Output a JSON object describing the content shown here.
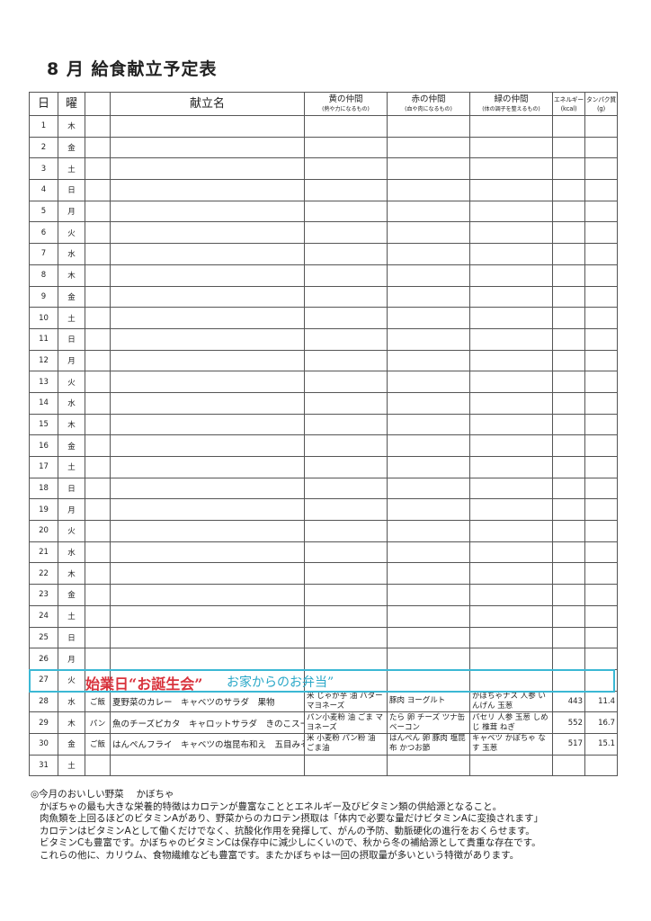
{
  "title": "8 月 給食献立予定表",
  "headers": {
    "day": "日",
    "weekday": "曜",
    "menu": "献立名",
    "yellow": "黄の仲間",
    "yellow_sub": "(熱や力になるもの)",
    "red": "赤の仲間",
    "red_sub": "(血や肉になるもの)",
    "green": "緑の仲間",
    "green_sub": "(体の調子を整えるもの)",
    "energy": "エネルギー",
    "energy_unit": "(kcal)",
    "protein": "タンパク質",
    "protein_unit": "(g)"
  },
  "rows": [
    {
      "day": "1",
      "wd": "木"
    },
    {
      "day": "2",
      "wd": "金"
    },
    {
      "day": "3",
      "wd": "土"
    },
    {
      "day": "4",
      "wd": "日"
    },
    {
      "day": "5",
      "wd": "月"
    },
    {
      "day": "6",
      "wd": "火"
    },
    {
      "day": "7",
      "wd": "水"
    },
    {
      "day": "8",
      "wd": "木"
    },
    {
      "day": "9",
      "wd": "金"
    },
    {
      "day": "10",
      "wd": "土"
    },
    {
      "day": "11",
      "wd": "日"
    },
    {
      "day": "12",
      "wd": "月"
    },
    {
      "day": "13",
      "wd": "火"
    },
    {
      "day": "14",
      "wd": "水"
    },
    {
      "day": "15",
      "wd": "木"
    },
    {
      "day": "16",
      "wd": "金"
    },
    {
      "day": "17",
      "wd": "土"
    },
    {
      "day": "18",
      "wd": "日"
    },
    {
      "day": "19",
      "wd": "月"
    },
    {
      "day": "20",
      "wd": "火"
    },
    {
      "day": "21",
      "wd": "水"
    },
    {
      "day": "22",
      "wd": "木"
    },
    {
      "day": "23",
      "wd": "金"
    },
    {
      "day": "24",
      "wd": "土"
    },
    {
      "day": "25",
      "wd": "日"
    },
    {
      "day": "26",
      "wd": "月"
    },
    {
      "day": "27",
      "wd": "火"
    },
    {
      "day": "28",
      "wd": "水",
      "staple": "ご飯",
      "menu": "夏野菜のカレー　キャベツのサラダ　果物",
      "yellow": "米 じゃが芋 油 バター マヨネーズ",
      "red": "豚肉 ヨーグルト",
      "green": "かぼちゃナス 人参 いんげん 玉葱",
      "energy": "443",
      "protein": "11.4"
    },
    {
      "day": "29",
      "wd": "木",
      "staple": "パン",
      "menu": "魚のチーズピカタ　キャロットサラダ　きのこスープ",
      "yellow": "パン小麦粉 油 ごま マヨネーズ",
      "red": "たら 卵 チーズ ツナ缶 ベーコン",
      "green": "パセリ 人参 玉葱 しめじ 椎茸 ねぎ",
      "energy": "552",
      "protein": "16.7"
    },
    {
      "day": "30",
      "wd": "金",
      "staple": "ご飯",
      "menu": "はんぺんフライ　キャベツの塩昆布和え　五目みそ汁",
      "yellow": "米 小麦粉 パン粉 油 ごま油",
      "red": "はんぺん 卵 豚肉 塩昆布 かつお節",
      "green": "キャベツ かぼちゃ なす 玉葱",
      "energy": "517",
      "protein": "15.1"
    },
    {
      "day": "31",
      "wd": "土"
    }
  ],
  "handwritten": {
    "red_text": "始業日“お誕生会”",
    "blue_text": "お家からのお弁当”",
    "red_color": "#d8323c",
    "blue_color": "#2aa8c8"
  },
  "notes": {
    "heading": "◎今月のおいしい野菜　 かぼちゃ",
    "lines": [
      "かぼちゃの最も大きな栄養的特徴はカロテンが豊富なこととエネルギー及びビタミン類の供給源となること。",
      "肉魚類を上回るほどのビタミンAがあり、野菜からのカロテン摂取は「体内で必要な量だけビタミンAに変換されます」",
      "カロテンはビタミンAとして働くだけでなく、抗酸化作用を発揮して、がんの予防、動脈硬化の進行をおくらせます。",
      "ビタミンCも豊富です。かぼちゃのビタミンCは保存中に減少しにくいので、秋から冬の補給源として貴重な存在です。",
      "これらの他に、カリウム、食物繊維なども豊富です。またかぼちゃは一回の摂取量が多いという特徴があります。"
    ]
  }
}
